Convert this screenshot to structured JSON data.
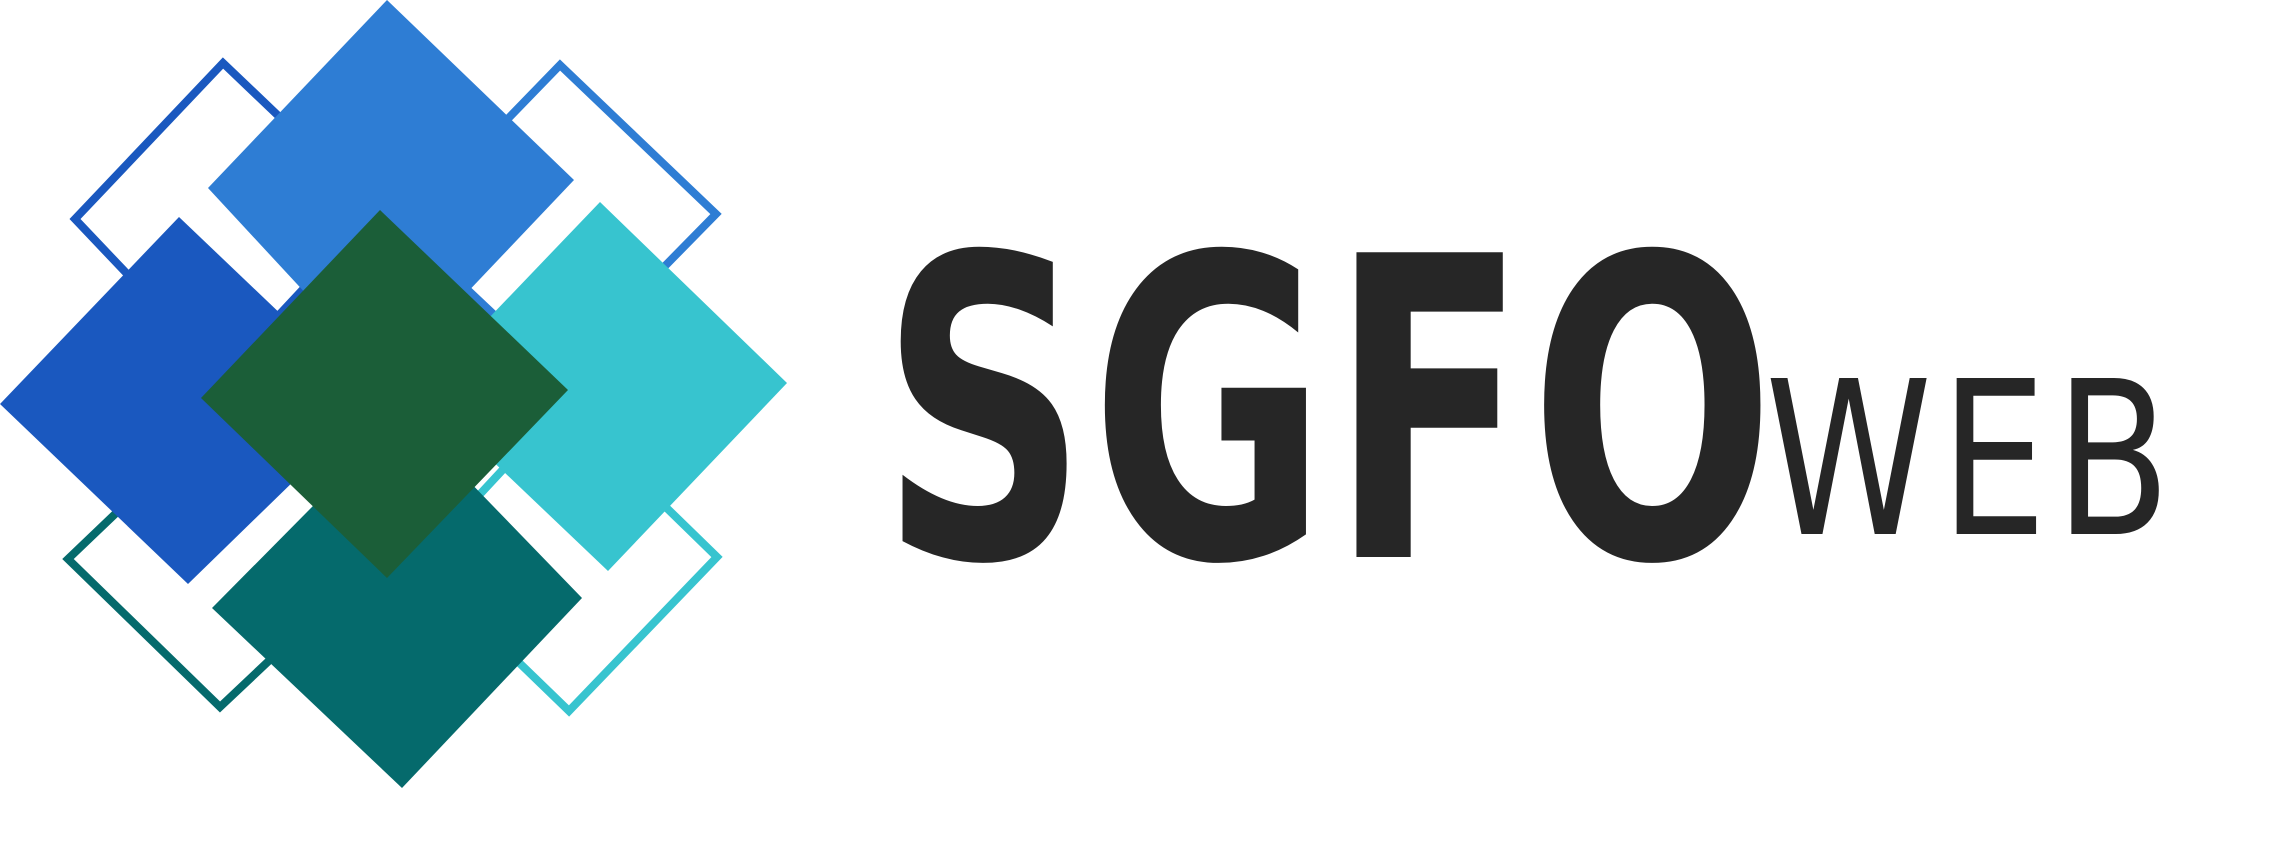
{
  "brand": {
    "name": "SGFO",
    "suffix": "WEB"
  },
  "colors": {
    "text": "#262626",
    "blue_light": "#2e7dd4",
    "blue_dark": "#1a58bf",
    "teal_light": "#37c4cf",
    "teal_dark": "#056a6c",
    "green_dark": "#1b5e38",
    "background": "#ffffff"
  },
  "icons": {
    "emblem": "overlapping-diamonds-icon"
  }
}
